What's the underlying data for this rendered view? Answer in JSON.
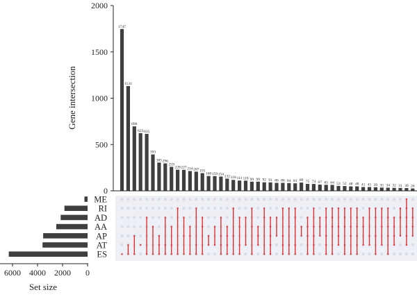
{
  "colors": {
    "bar": "#3f3f3f",
    "dot_inactive": "#d8dce8",
    "matrix_bg": "#eef0f6",
    "active": "#e03030",
    "axis": "#222222"
  },
  "chart_data": [
    {
      "type": "bar",
      "ylabel": "Gene intersection",
      "ylim": [
        0,
        2000
      ],
      "yticks": [
        "0",
        "500",
        "1000",
        "1500",
        "2000"
      ],
      "values": [
        1747,
        1131,
        696,
        623,
        615,
        393,
        305,
        296,
        259,
        228,
        227,
        214,
        207,
        191,
        160,
        159,
        154,
        132,
        118,
        111,
        110,
        99,
        99,
        92,
        91,
        86,
        86,
        84,
        81,
        89,
        75,
        74,
        67,
        65,
        64,
        53,
        52,
        48,
        48,
        41,
        41,
        39,
        35,
        34,
        32,
        31,
        30,
        26,
        23
      ],
      "labels": [
        "1747",
        "1131",
        "696",
        "623",
        "615",
        "393",
        "305",
        "296",
        "259",
        "228",
        "227",
        "214",
        "207",
        "191",
        "160",
        "159",
        "154",
        "132",
        "118",
        "111",
        "110",
        "99",
        "99",
        "92",
        "91",
        "86",
        "86",
        "84",
        "81",
        "89",
        "75",
        "74",
        "67",
        "65",
        "64",
        "53",
        "52",
        "48",
        "48",
        "41",
        "41",
        "39",
        "35",
        "34",
        "32",
        "31",
        "30",
        "26",
        "23"
      ]
    },
    {
      "type": "bar",
      "orientation": "horizontal",
      "xlabel": "Set size",
      "xticks": [
        "6000",
        "4000",
        "2000",
        "0"
      ],
      "xlim": [
        0,
        7000
      ],
      "categories": [
        "ME",
        "RI",
        "AD",
        "AA",
        "AP",
        "AT",
        "ES"
      ],
      "values": [
        250,
        1850,
        2150,
        2500,
        3550,
        3600,
        6300
      ]
    }
  ],
  "matrix": {
    "sets": [
      "ME",
      "RI",
      "AD",
      "AA",
      "AP",
      "AT",
      "ES"
    ],
    "columns": [
      [
        6
      ],
      [
        5,
        6
      ],
      [
        4,
        6
      ],
      [
        5
      ],
      [
        2,
        6
      ],
      [
        3,
        6
      ],
      [
        4,
        5,
        6
      ],
      [
        2,
        5,
        6
      ],
      [
        3,
        5,
        6
      ],
      [
        1,
        6
      ],
      [
        2,
        4,
        6
      ],
      [
        3,
        4,
        6
      ],
      [
        1,
        5,
        6
      ],
      [
        2,
        3,
        6
      ],
      [
        4,
        5
      ],
      [
        3,
        5
      ],
      [
        2,
        4,
        5,
        6
      ],
      [
        3,
        4,
        5,
        6
      ],
      [
        1,
        4,
        6
      ],
      [
        2,
        3,
        5,
        6
      ],
      [
        2,
        5
      ],
      [
        1,
        3,
        6
      ],
      [
        3,
        4,
        5
      ],
      [
        1,
        2,
        6
      ],
      [
        2,
        3,
        4,
        5,
        6
      ],
      [
        2,
        4
      ],
      [
        1,
        4,
        5,
        6
      ],
      [
        1,
        3,
        5,
        6
      ],
      [
        1,
        2,
        5,
        6
      ],
      [
        3,
        4
      ],
      [
        2,
        3,
        4,
        6
      ],
      [
        1,
        3,
        4,
        5,
        6
      ],
      [
        2,
        3,
        4
      ],
      [
        1,
        2,
        4,
        5,
        6
      ],
      [
        1,
        2,
        3,
        6
      ],
      [
        1,
        3,
        4,
        5
      ],
      [
        1,
        2,
        3,
        5,
        6
      ],
      [
        1,
        3,
        4,
        6
      ],
      [
        1,
        2,
        3,
        4,
        5,
        6
      ],
      [
        2,
        3,
        5
      ],
      [
        1,
        4,
        5
      ],
      [
        1,
        2,
        4,
        6
      ],
      [
        1,
        3,
        5
      ],
      [
        1,
        2,
        3,
        4,
        6
      ],
      [
        2,
        3,
        4,
        5
      ],
      [
        1,
        2,
        4
      ],
      [
        0,
        1,
        2,
        3,
        4,
        5
      ],
      [
        1,
        2,
        3,
        4
      ],
      [
        1,
        2,
        3,
        4,
        5
      ]
    ]
  }
}
